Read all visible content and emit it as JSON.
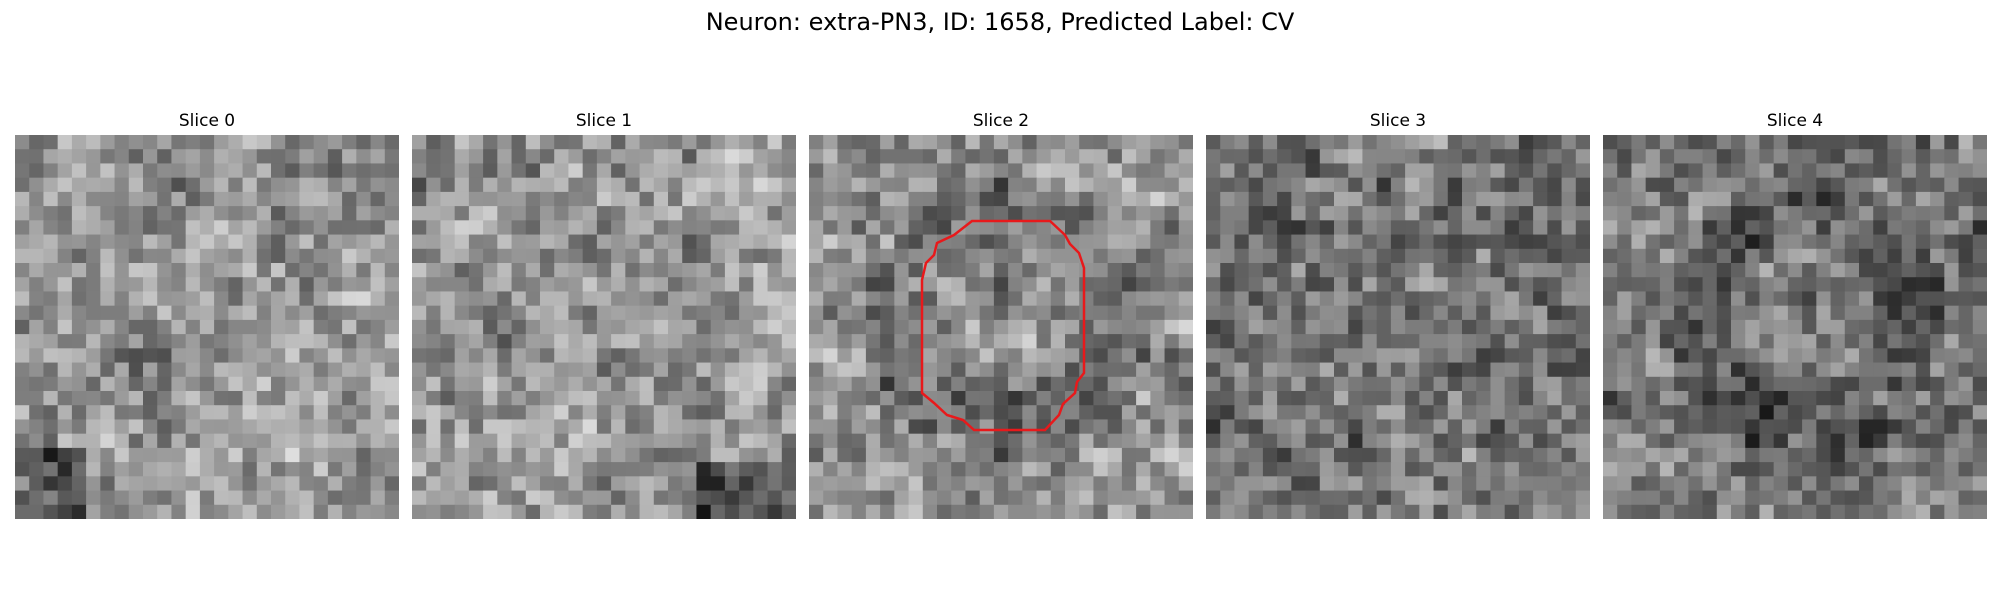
{
  "figure": {
    "title": "Neuron: extra-PN3, ID: 1658, Predicted Label: CV"
  },
  "slices": [
    {
      "label": "Slice 0",
      "seed": 11,
      "bias": 0.58,
      "contour": false
    },
    {
      "label": "Slice 1",
      "seed": 23,
      "bias": 0.6,
      "contour": false
    },
    {
      "label": "Slice 2",
      "seed": 37,
      "bias": 0.57,
      "contour": true
    },
    {
      "label": "Slice 3",
      "seed": 41,
      "bias": 0.45,
      "contour": false
    },
    {
      "label": "Slice 4",
      "seed": 53,
      "bias": 0.48,
      "contour": false
    }
  ],
  "colors": {
    "contour": "#e8191b",
    "background": "#ffffff"
  },
  "image": {
    "grid_size": 27,
    "colormap": "gray"
  }
}
